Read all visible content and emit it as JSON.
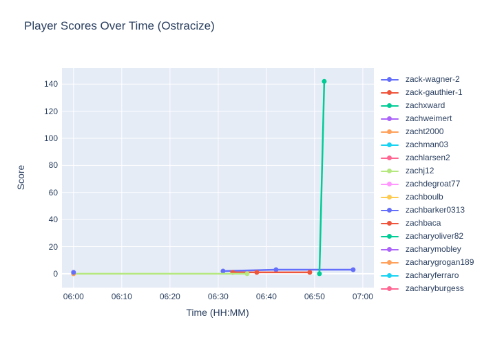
{
  "title": "Player Scores Over Time (Ostracize)",
  "colors": {
    "text": "#2a3f5f",
    "plot_background": "#e5ecf6",
    "gridline": "#ffffff",
    "paper_background": "#ffffff"
  },
  "chart_data": {
    "type": "line",
    "title": "Player Scores Over Time (Ostracize)",
    "xlabel": "Time (HH:MM)",
    "ylabel": "Score",
    "x_tick_labels": [
      "06:00",
      "06:10",
      "06:20",
      "06:30",
      "06:40",
      "06:50",
      "07:00"
    ],
    "y_tick_labels": [
      "0",
      "20",
      "40",
      "60",
      "80",
      "100",
      "120",
      "140"
    ],
    "y_ticks": [
      0,
      20,
      40,
      60,
      80,
      100,
      120,
      140
    ],
    "x_range_minutes": [
      357.6,
      422.3
    ],
    "y_range": [
      -10.2,
      151.8
    ],
    "grid": true,
    "legend_position": "right",
    "marker_mode": "lines+markers",
    "series": [
      {
        "name": "zack-wagner-2",
        "color": "#636EFA",
        "points": [
          [
            "06:31",
            2
          ],
          [
            "06:42",
            3
          ],
          [
            "06:58",
            3
          ]
        ]
      },
      {
        "name": "zack-gauthier-1",
        "color": "#EF553B",
        "points": [
          [
            "06:33",
            1
          ],
          [
            "06:38",
            1
          ],
          [
            "06:49",
            1
          ]
        ]
      },
      {
        "name": "zachxward",
        "color": "#00CC96",
        "points": [
          [
            "06:51",
            0
          ],
          [
            "06:52",
            142
          ]
        ]
      },
      {
        "name": "zachweimert",
        "color": "#AB63FA",
        "points": []
      },
      {
        "name": "zacht2000",
        "color": "#FFA15A",
        "points": [
          [
            "06:00",
            0
          ]
        ]
      },
      {
        "name": "zachman03",
        "color": "#19D3F3",
        "points": []
      },
      {
        "name": "zachlarsen2",
        "color": "#FF6692",
        "points": []
      },
      {
        "name": "zachj12",
        "color": "#B6E880",
        "points": [
          [
            "06:00",
            0
          ],
          [
            "06:36",
            0
          ]
        ]
      },
      {
        "name": "zachdegroat77",
        "color": "#FF97FF",
        "points": []
      },
      {
        "name": "zachboulb",
        "color": "#FECB52",
        "points": []
      },
      {
        "name": "zachbarker0313",
        "color": "#636EFA",
        "points": [
          [
            "06:00",
            1
          ]
        ]
      },
      {
        "name": "zachbaca",
        "color": "#EF553B",
        "points": []
      },
      {
        "name": "zacharyoliver82",
        "color": "#00CC96",
        "points": []
      },
      {
        "name": "zacharymobley",
        "color": "#AB63FA",
        "points": []
      },
      {
        "name": "zacharygrogan189",
        "color": "#FFA15A",
        "points": []
      },
      {
        "name": "zacharyferraro",
        "color": "#19D3F3",
        "points": []
      },
      {
        "name": "zacharyburgess",
        "color": "#FF6692",
        "points": []
      }
    ]
  }
}
